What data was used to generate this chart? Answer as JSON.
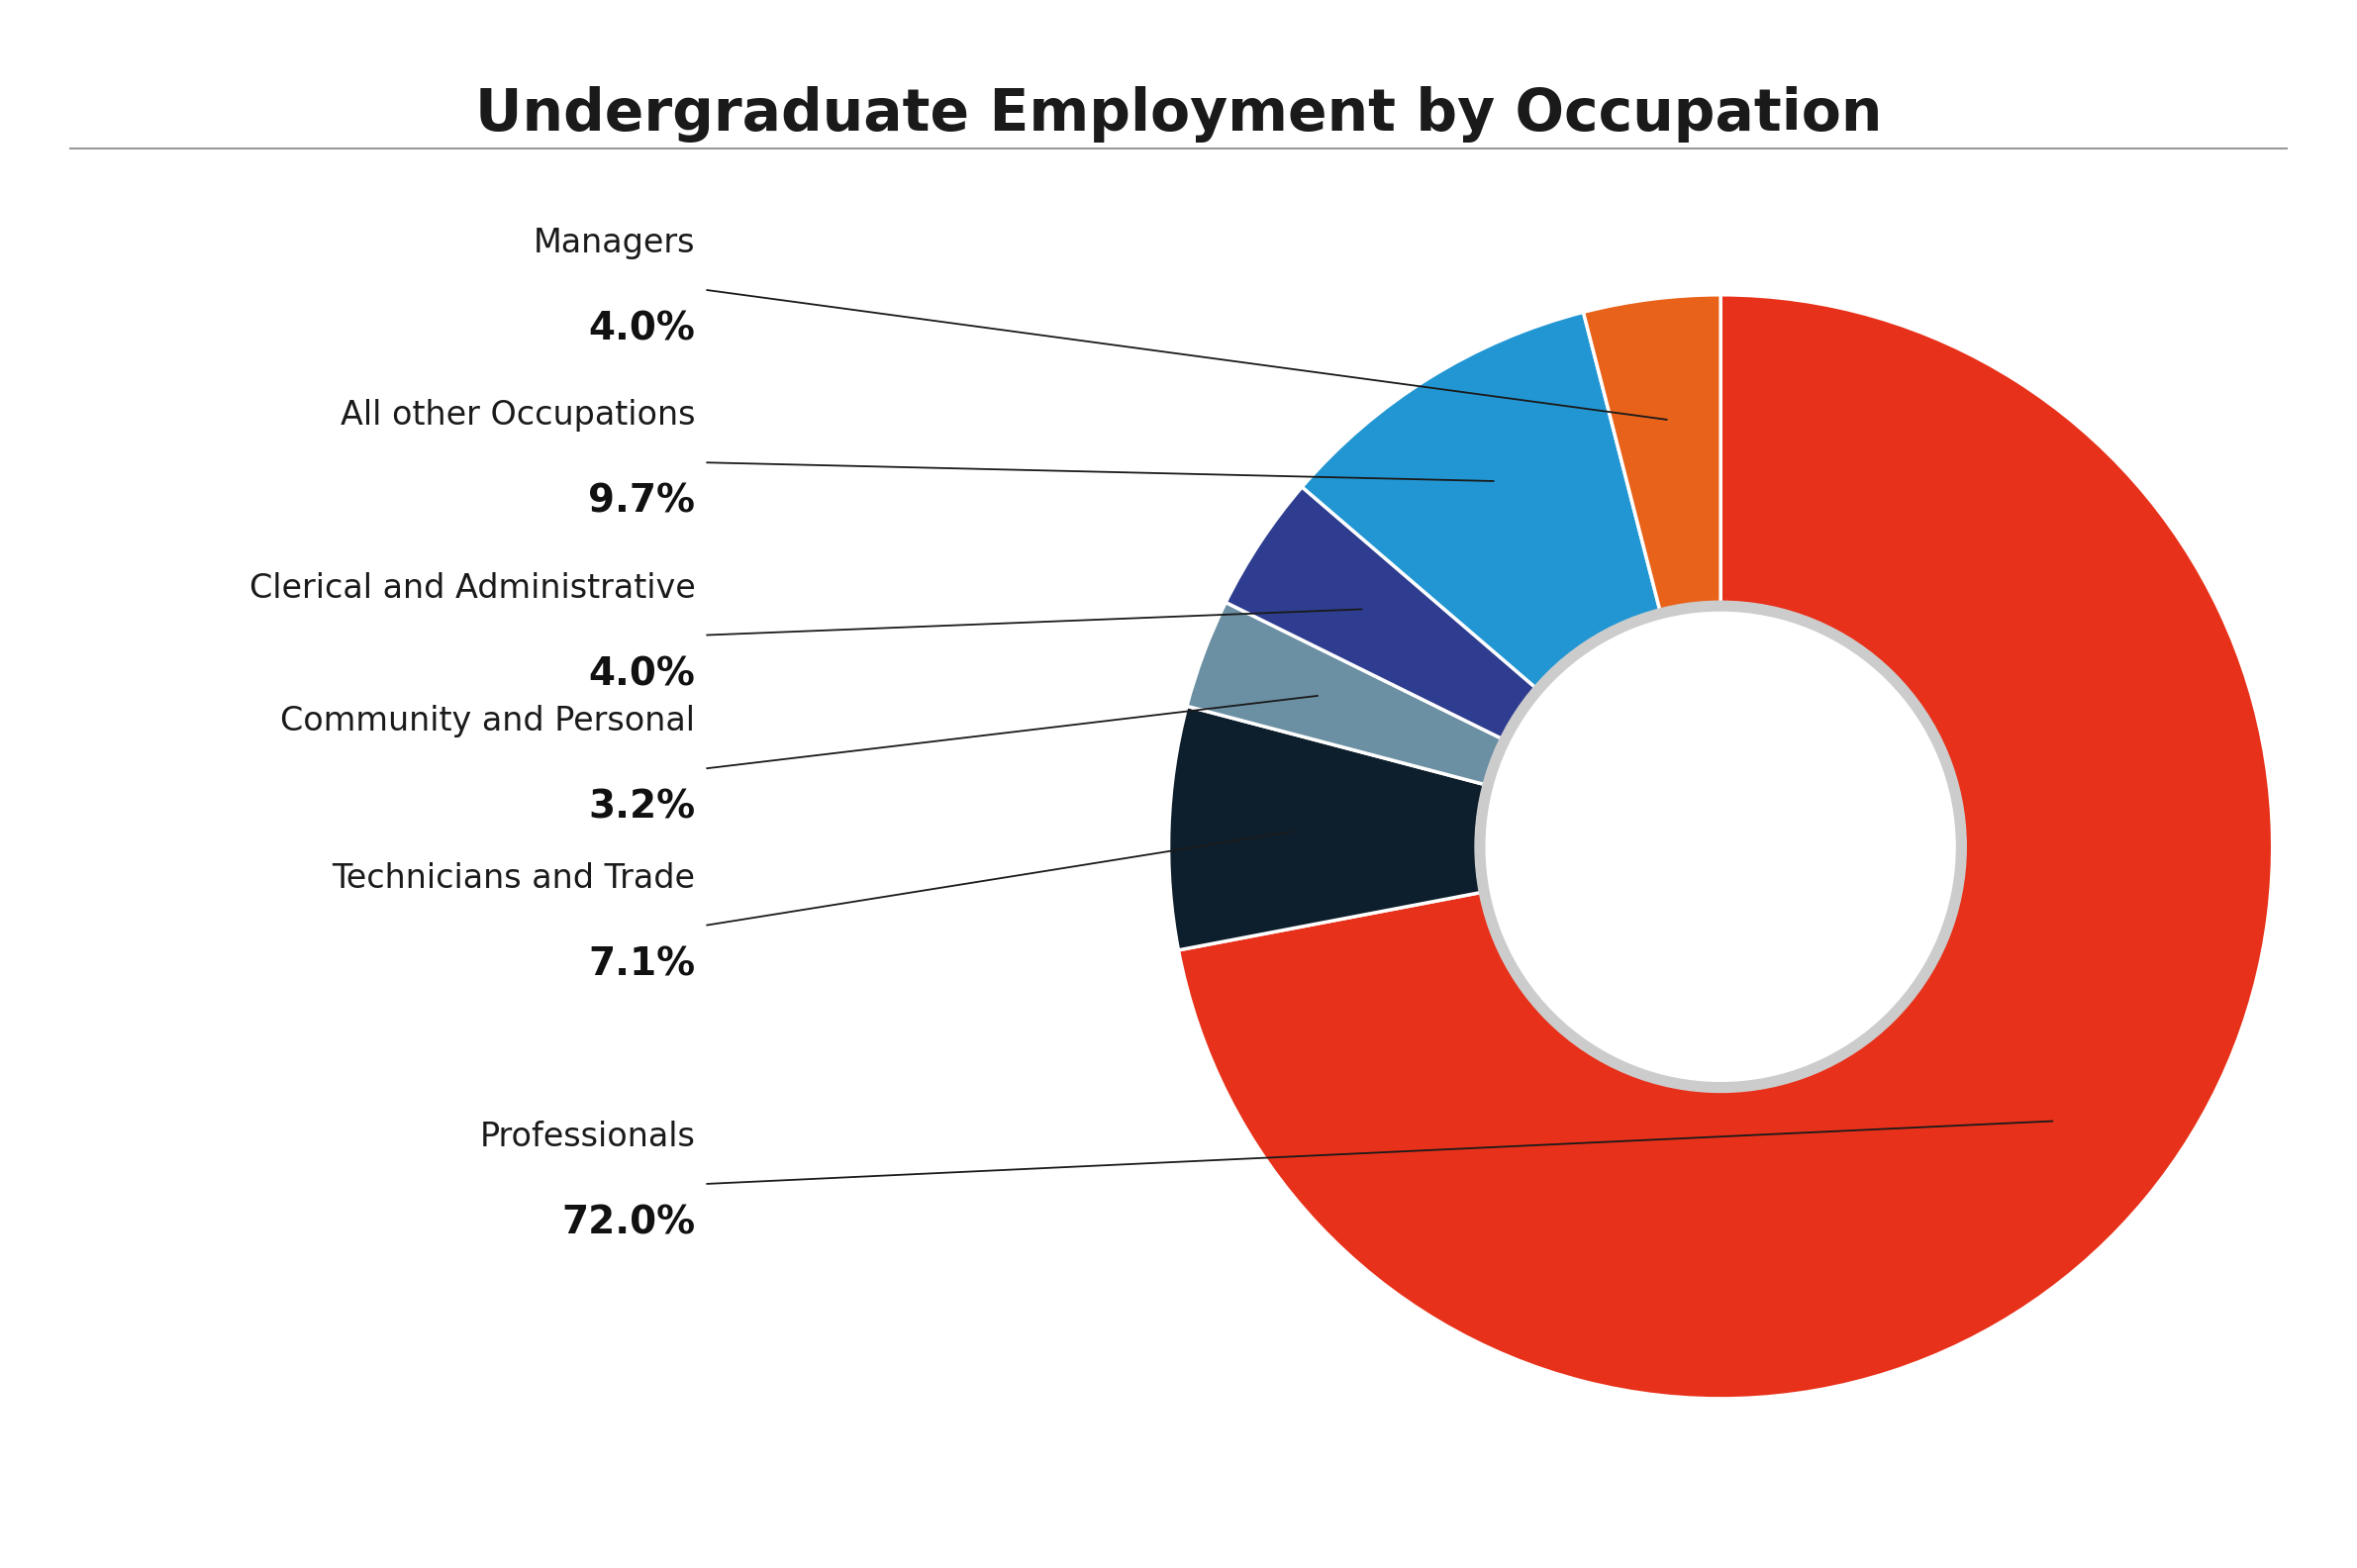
{
  "title": "Undergraduate Employment by Occupation",
  "categories": [
    "Professionals",
    "Technicians and Trade",
    "Community and Personal",
    "Clerical and Administrative",
    "All other Occupations",
    "Managers"
  ],
  "values": [
    72.0,
    7.1,
    3.2,
    4.0,
    9.7,
    4.0
  ],
  "colors": [
    "#E8311A",
    "#0D1F2D",
    "#6B8FA3",
    "#2E3D8F",
    "#2196D3",
    "#E8621A"
  ],
  "label_names": [
    "Professionals",
    "Technicians and Trade",
    "Community and Personal",
    "Clerical and Administrative",
    "All other Occupations",
    "Managers"
  ],
  "label_pcts": [
    "72.0%",
    "7.1%",
    "3.2%",
    "4.0%",
    "9.7%",
    "4.0%"
  ],
  "title_fontsize": 42,
  "label_fontsize": 24,
  "pct_fontsize": 28,
  "background_color": "#FFFFFF",
  "title_color": "#1a1a1a",
  "label_color": "#1a1a1a",
  "pct_color": "#111111",
  "line_color": "#1a1a1a"
}
